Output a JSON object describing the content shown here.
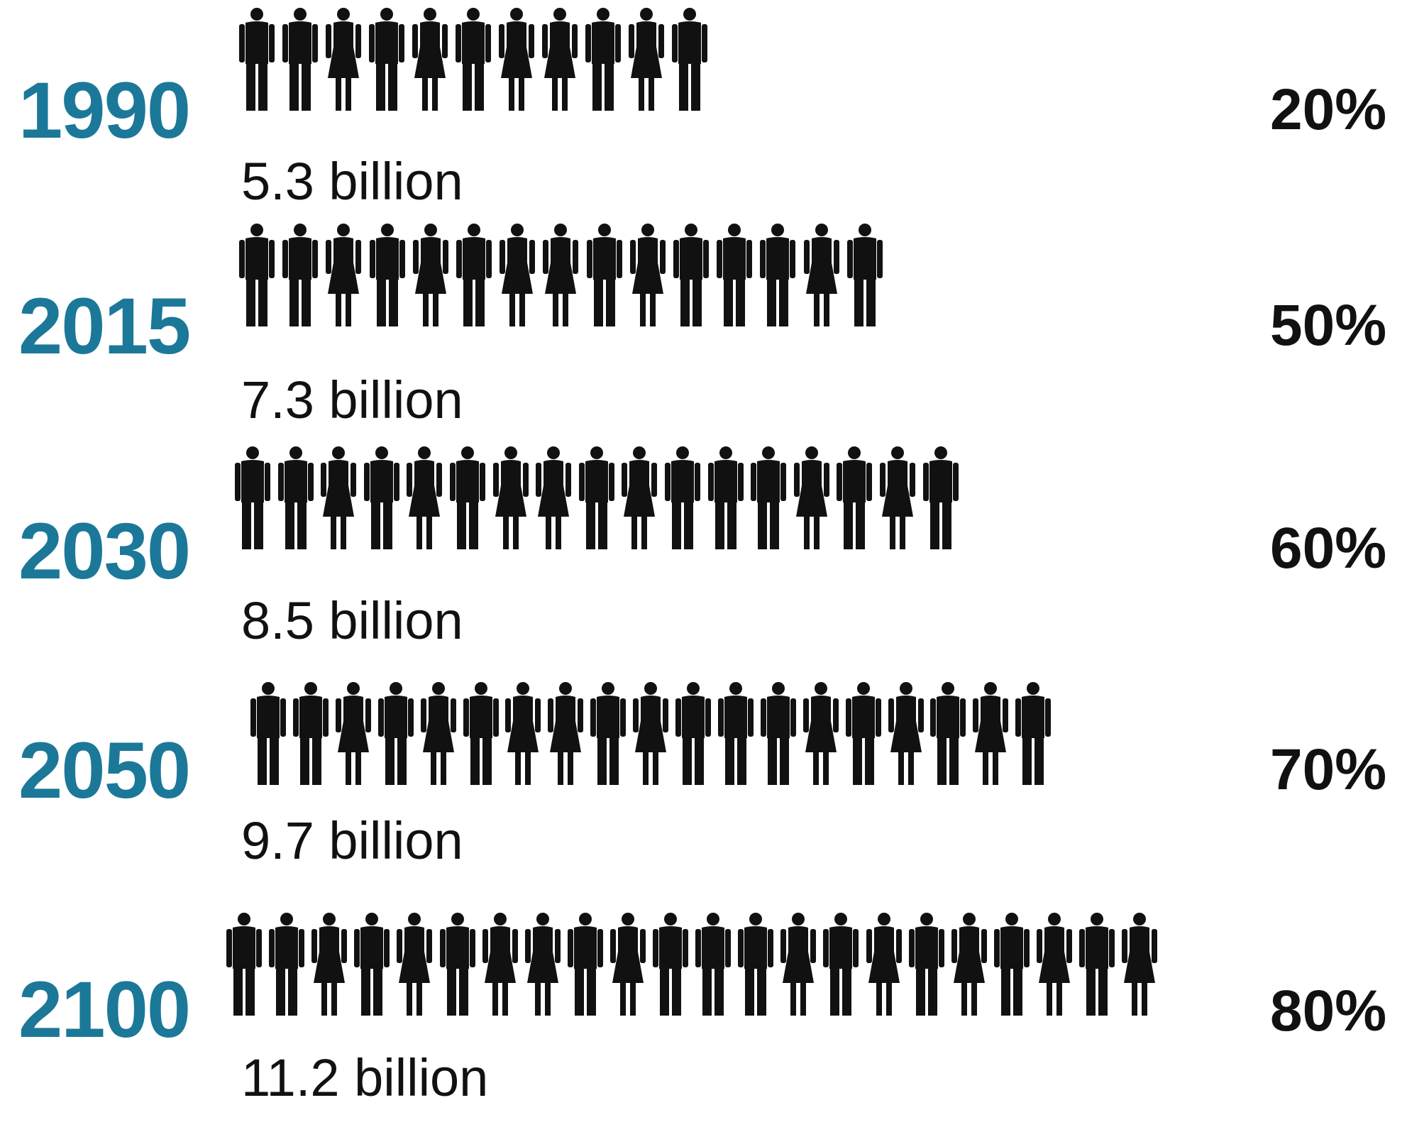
{
  "chart_data": {
    "type": "pictogram",
    "title": "",
    "rows": [
      {
        "year": "1990",
        "population_label": "5.3 billion",
        "population": 5.3,
        "percent_label": "20%",
        "percent": 20,
        "figures": [
          "m",
          "m",
          "f",
          "m",
          "f",
          "m",
          "f",
          "f",
          "m",
          "f",
          "m"
        ]
      },
      {
        "year": "2015",
        "population_label": "7.3 billion",
        "population": 7.3,
        "percent_label": "50%",
        "percent": 50,
        "figures": [
          "m",
          "m",
          "f",
          "m",
          "f",
          "m",
          "f",
          "f",
          "m",
          "f",
          "m",
          "m",
          "m",
          "f",
          "m"
        ]
      },
      {
        "year": "2030",
        "population_label": "8.5 billion",
        "population": 8.5,
        "percent_label": "60%",
        "percent": 60,
        "figures": [
          "m",
          "m",
          "f",
          "m",
          "f",
          "m",
          "f",
          "f",
          "m",
          "f",
          "m",
          "m",
          "m",
          "f",
          "m",
          "f",
          "m"
        ]
      },
      {
        "year": "2050",
        "population_label": "9.7 billion",
        "population": 9.7,
        "percent_label": "70%",
        "percent": 70,
        "figures": [
          "m",
          "m",
          "f",
          "m",
          "f",
          "m",
          "f",
          "f",
          "m",
          "f",
          "m",
          "m",
          "m",
          "f",
          "m",
          "f",
          "m",
          "f",
          "m"
        ]
      },
      {
        "year": "2100",
        "population_label": "11.2 billion",
        "population": 11.2,
        "percent_label": "80%",
        "percent": 80,
        "figures": [
          "m",
          "m",
          "f",
          "m",
          "f",
          "m",
          "f",
          "f",
          "m",
          "f",
          "m",
          "m",
          "m",
          "f",
          "m",
          "f",
          "m",
          "f",
          "m",
          "f",
          "m",
          "f"
        ]
      }
    ],
    "colors": {
      "year": "#1b7899",
      "figure": "#111111",
      "text": "#111111"
    },
    "icons": {
      "m": "man-icon",
      "f": "woman-icon"
    }
  }
}
